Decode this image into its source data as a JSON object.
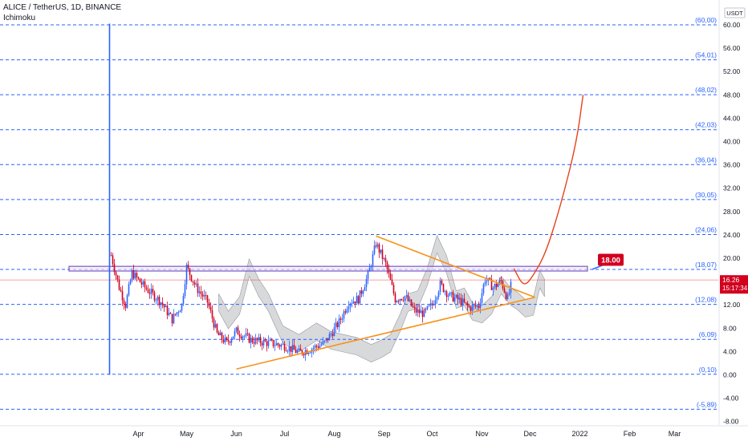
{
  "header": {
    "symbol_line": "ALICE / TetherUS, 1D, BINANCE",
    "indicator": "Ichimoku"
  },
  "currency": "USDT",
  "chart_data": {
    "type": "candlestick",
    "title": "ALICE / TetherUS, 1D, BINANCE",
    "indicators": [
      "Ichimoku"
    ],
    "y_axis": {
      "ticks": [
        -8.0,
        -4.0,
        0.0,
        4.0,
        8.0,
        12.0,
        16.0,
        20.0,
        24.0,
        28.0,
        32.0,
        36.0,
        40.0,
        44.0,
        48.0,
        52.0,
        56.0,
        60.0
      ],
      "ylim": [
        -9.5,
        63
      ],
      "side": "right"
    },
    "x_axis": {
      "labels": [
        "Apr",
        "May",
        "Jun",
        "Jul",
        "Aug",
        "Sep",
        "Oct",
        "Nov",
        "Dec",
        "2022",
        "Feb",
        "Mar"
      ]
    },
    "horizontal_levels": [
      {
        "label": "(60,00)",
        "value": 60.0
      },
      {
        "label": "(54,01)",
        "value": 54.01
      },
      {
        "label": "(48,02)",
        "value": 48.02
      },
      {
        "label": "(42,03)",
        "value": 42.03
      },
      {
        "label": "(36,04)",
        "value": 36.04
      },
      {
        "label": "(30,05)",
        "value": 30.05
      },
      {
        "label": "(24,06)",
        "value": 24.06
      },
      {
        "label": "(18,07)",
        "value": 18.07
      },
      {
        "label": "(12,08)",
        "value": 12.08
      },
      {
        "label": "(6,09)",
        "value": 6.09
      },
      {
        "label": "(0,10)",
        "value": 0.1
      },
      {
        "label": "(-5,89)",
        "value": -5.89
      }
    ],
    "resistance_zone": [
      17.8,
      18.6
    ],
    "target_label": "18.00",
    "current_price": {
      "value": 16.26,
      "label": "16.26",
      "countdown": "15:17:34"
    },
    "triangle": {
      "upper": [
        {
          "date": "Aug 27",
          "price": 23.8
        },
        {
          "date": "Dec 4",
          "price": 13.3
        }
      ],
      "lower": [
        {
          "date": "Jun 1",
          "price": 1.0
        },
        {
          "date": "Dec 4",
          "price": 13.3
        }
      ]
    },
    "projection": [
      {
        "date": "Nov 21",
        "price": 18.2
      },
      {
        "date": "Nov 27",
        "price": 15.0
      },
      {
        "date": "Dec 3",
        "price": 17.0
      },
      {
        "date": "Dec 11",
        "price": 21.0
      },
      {
        "date": "Dec 21",
        "price": 30.0
      },
      {
        "date": "Dec 30",
        "price": 40.0
      },
      {
        "date": "Jan 3",
        "price": 48.0
      }
    ],
    "price_path": [
      {
        "date": "Mar 15",
        "price": 20.5
      },
      {
        "date": "Mar 20",
        "price": 15.0
      },
      {
        "date": "Mar 24",
        "price": 12.0
      },
      {
        "date": "Mar 28",
        "price": 17.5
      },
      {
        "date": "Apr 5",
        "price": 15.0
      },
      {
        "date": "Apr 15",
        "price": 12.5
      },
      {
        "date": "Apr 22",
        "price": 9.5
      },
      {
        "date": "Apr 28",
        "price": 12.0
      },
      {
        "date": "May 1",
        "price": 18.5
      },
      {
        "date": "May 7",
        "price": 15.0
      },
      {
        "date": "May 14",
        "price": 12.5
      },
      {
        "date": "May 20",
        "price": 7.0
      },
      {
        "date": "May 26",
        "price": 5.5
      },
      {
        "date": "Jun 1",
        "price": 7.5
      },
      {
        "date": "Jun 10",
        "price": 6.0
      },
      {
        "date": "Jun 20",
        "price": 5.5
      },
      {
        "date": "Jul 1",
        "price": 5.0
      },
      {
        "date": "Jul 10",
        "price": 3.8
      },
      {
        "date": "Jul 18",
        "price": 4.5
      },
      {
        "date": "Jul 26",
        "price": 5.5
      },
      {
        "date": "Aug 4",
        "price": 9.0
      },
      {
        "date": "Aug 10",
        "price": 12.5
      },
      {
        "date": "Aug 16",
        "price": 13.0
      },
      {
        "date": "Aug 22",
        "price": 17.0
      },
      {
        "date": "Aug 27",
        "price": 22.5
      },
      {
        "date": "Sep 2",
        "price": 19.0
      },
      {
        "date": "Sep 8",
        "price": 13.0
      },
      {
        "date": "Sep 14",
        "price": 13.5
      },
      {
        "date": "Sep 20",
        "price": 11.0
      },
      {
        "date": "Sep 26",
        "price": 10.5
      },
      {
        "date": "Oct 1",
        "price": 12.0
      },
      {
        "date": "Oct 6",
        "price": 15.5
      },
      {
        "date": "Oct 12",
        "price": 13.5
      },
      {
        "date": "Oct 18",
        "price": 12.8
      },
      {
        "date": "Oct 24",
        "price": 11.5
      },
      {
        "date": "Oct 30",
        "price": 11.8
      },
      {
        "date": "Nov 3",
        "price": 16.5
      },
      {
        "date": "Nov 8",
        "price": 15.0
      },
      {
        "date": "Nov 13",
        "price": 16.0
      },
      {
        "date": "Nov 17",
        "price": 13.0
      },
      {
        "date": "Nov 20",
        "price": 16.3
      }
    ]
  },
  "colors": {
    "level_line": "#2962ff",
    "triangle": "#f7931a",
    "projection": "#e8421d",
    "zone_border": "#7e57c2",
    "badge": "#d1001f",
    "up_candle": "#2962ff",
    "down_candle": "#d1001f",
    "cloud": "#b8babe"
  }
}
